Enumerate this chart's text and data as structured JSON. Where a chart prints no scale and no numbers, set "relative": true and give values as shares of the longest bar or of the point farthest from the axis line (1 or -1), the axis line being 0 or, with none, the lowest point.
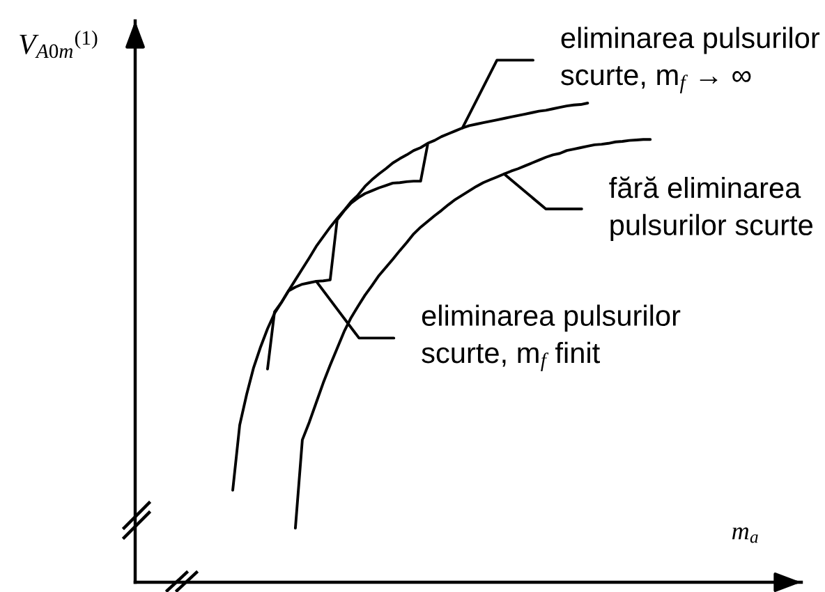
{
  "chart_data": {
    "type": "line",
    "relative": true,
    "xlabel": "m$_{a}$",
    "ylabel": "V$_{A0m}$$^{(1)}$",
    "categories": [
      null,
      null,
      null,
      null,
      null,
      null,
      null,
      null,
      null,
      null,
      null,
      null,
      null,
      null,
      null,
      null,
      null,
      null,
      null,
      null,
      null,
      null,
      null,
      null,
      null,
      null,
      null,
      null,
      null,
      null,
      null,
      null,
      null,
      null,
      null,
      null,
      null,
      null,
      null,
      null,
      null,
      null,
      null,
      null,
      null,
      null,
      null,
      null,
      null,
      null,
      null,
      null,
      null,
      null,
      null,
      null,
      null,
      null,
      null,
      null,
      null,
      null
    ],
    "annotations": [
      "eliminarea pulsurilor\nscurte, m$_{f}$ → ∞",
      "fără eliminarea\npulsurilor scurte",
      "eliminarea pulsurilor\nscurte, m$_{f}$ finit"
    ],
    "series": [
      {
        "color": "#000000",
        "values": [
          null,
          0.192,
          0.328,
          0.392,
          0.448,
          0.491,
          0.529,
          0.561,
          0.584,
          0.608,
          0.631,
          0.654,
          0.677,
          0.701,
          0.721,
          0.741,
          0.759,
          0.776,
          0.794,
          0.808,
          0.826,
          0.84,
          0.852,
          0.863,
          0.875,
          0.884,
          0.892,
          0.901,
          0.907,
          0.916,
          0.922,
          0.93,
          0.936,
          0.942,
          0.948,
          0.953,
          0.956,
          0.959,
          0.962,
          0.965,
          0.968,
          0.971,
          0.974,
          0.977,
          0.98,
          0.983,
          0.985,
          0.988,
          0.991,
          0.994,
          0.996,
          0.997,
          1.0,
          null,
          null,
          null,
          null,
          null,
          null,
          null,
          null,
          null
        ]
      },
      {
        "color": "#000000",
        "values": [
          null,
          null,
          null,
          null,
          null,
          null,
          null,
          null,
          null,
          null,
          0.113,
          0.297,
          0.334,
          0.375,
          0.416,
          0.453,
          0.488,
          0.523,
          0.552,
          0.576,
          0.599,
          0.619,
          0.64,
          0.657,
          0.674,
          0.692,
          0.709,
          0.727,
          0.741,
          0.753,
          0.765,
          0.776,
          0.788,
          0.799,
          0.808,
          0.817,
          0.826,
          0.834,
          0.84,
          0.846,
          0.852,
          0.858,
          0.863,
          0.869,
          0.875,
          0.881,
          0.887,
          0.892,
          0.895,
          0.901,
          0.904,
          0.907,
          0.91,
          0.913,
          0.914,
          0.916,
          0.919,
          0.92,
          0.922,
          0.923,
          0.924,
          0.924
        ]
      },
      {
        "color": "#000000",
        "values": [
          null,
          null,
          null,
          null,
          null,
          null,
          0.445,
          0.564,
          0.584,
          0.608,
          0.616,
          0.622,
          0.625,
          0.628,
          0.629,
          0.631,
          0.756,
          0.775,
          0.791,
          0.802,
          0.811,
          0.817,
          0.823,
          0.828,
          0.833,
          0.834,
          0.836,
          0.837,
          0.837,
          0.913,
          null,
          null,
          null,
          null,
          null,
          null,
          null,
          null,
          null,
          null,
          null,
          null,
          null,
          null,
          null,
          null,
          null,
          null,
          null,
          null,
          null,
          null,
          null,
          null,
          null,
          null,
          null,
          null,
          null,
          null,
          null,
          null
        ]
      }
    ]
  }
}
